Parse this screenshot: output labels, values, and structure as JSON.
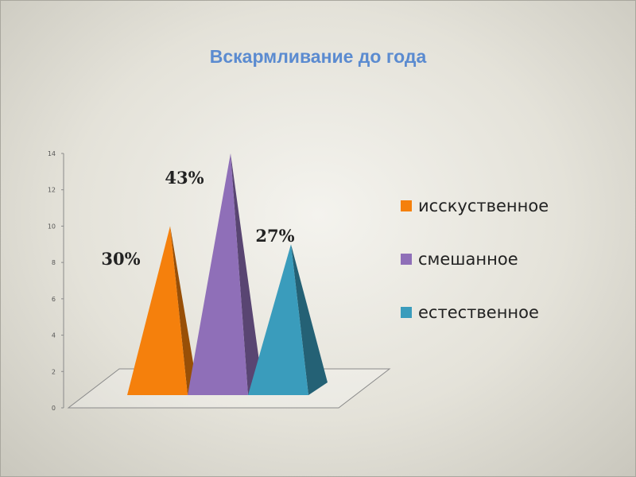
{
  "chart_data": {
    "type": "bar",
    "bar_shape": "pyramid-3d",
    "title": "Вскармливание до года",
    "xlabel": "",
    "ylabel": "",
    "ylim": [
      0,
      14
    ],
    "yticks": [
      0,
      2,
      4,
      6,
      8,
      10,
      12,
      14
    ],
    "series": [
      {
        "name": "исскуственное",
        "values": [
          10
        ],
        "label": "30%",
        "color": "#f5800c"
      },
      {
        "name": "смешанное",
        "values": [
          14
        ],
        "label": "43%",
        "color": "#8f6fb8"
      },
      {
        "name": "естественное",
        "values": [
          9
        ],
        "label": "27%",
        "color": "#3a9cbc"
      }
    ],
    "grid": false,
    "legend": "right"
  }
}
